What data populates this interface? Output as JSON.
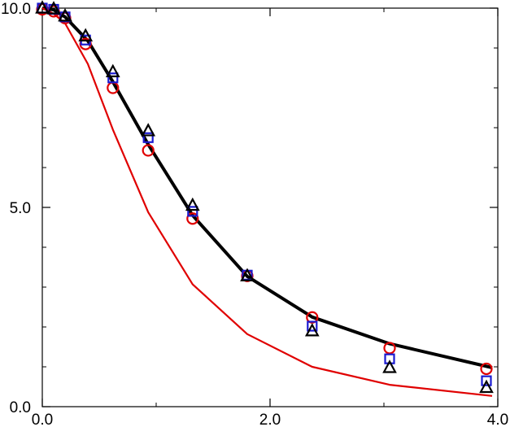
{
  "chart_data": {
    "type": "scatter",
    "title": "",
    "xlabel": "",
    "ylabel": "",
    "xlim": [
      0,
      4
    ],
    "ylim": [
      0,
      10
    ],
    "x_ticks": [
      {
        "value": 0,
        "label": "0.0"
      },
      {
        "value": 2,
        "label": "2.0"
      },
      {
        "value": 4,
        "label": "4.0"
      }
    ],
    "y_ticks": [
      {
        "value": 0,
        "label": "0.0"
      },
      {
        "value": 5,
        "label": "5.0"
      },
      {
        "value": 10,
        "label": "10.0"
      }
    ],
    "x_minor_step": 1,
    "y_minor_step": 1,
    "grid": false,
    "colors": {
      "black": "#000000",
      "red": "#e00000",
      "blue": "#1a1ad0"
    },
    "series": [
      {
        "kind": "line",
        "color": "#000000",
        "x": [
          0,
          0.1,
          0.2,
          0.4,
          0.62,
          0.93,
          1.32,
          1.8,
          2.37,
          3.05,
          3.95
        ],
        "y": [
          10.0,
          9.96,
          9.78,
          9.18,
          8.15,
          6.58,
          4.8,
          3.27,
          2.25,
          1.58,
          0.98
        ]
      },
      {
        "kind": "line",
        "color": "#e00000",
        "x": [
          0,
          0.1,
          0.2,
          0.4,
          0.62,
          0.93,
          1.32,
          1.8,
          2.37,
          3.05,
          3.95
        ],
        "y": [
          10.0,
          9.86,
          9.62,
          8.6,
          6.95,
          4.88,
          3.07,
          1.82,
          1.0,
          0.55,
          0.27
        ]
      },
      {
        "kind": "marker",
        "marker": "circle",
        "color": "#e00000",
        "x": [
          0.0,
          0.1,
          0.2,
          0.38,
          0.62,
          0.93,
          1.32,
          1.8,
          2.37,
          3.05,
          3.9
        ],
        "y": [
          9.97,
          9.92,
          9.75,
          9.1,
          8.0,
          6.43,
          4.72,
          3.28,
          2.24,
          1.47,
          0.95
        ]
      },
      {
        "kind": "marker",
        "marker": "square",
        "color": "#1a1ad0",
        "x": [
          0.0,
          0.1,
          0.2,
          0.38,
          0.62,
          0.93,
          1.32,
          1.8,
          2.37,
          3.05,
          3.9
        ],
        "y": [
          10.0,
          9.97,
          9.78,
          9.2,
          8.25,
          6.75,
          4.9,
          3.3,
          2.02,
          1.2,
          0.65
        ]
      },
      {
        "kind": "marker",
        "marker": "triangle",
        "color": "#000000",
        "x": [
          0.0,
          0.1,
          0.2,
          0.38,
          0.62,
          0.93,
          1.32,
          1.8,
          2.37,
          3.05,
          3.9
        ],
        "y": [
          10.0,
          9.98,
          9.8,
          9.3,
          8.4,
          6.92,
          5.05,
          3.28,
          1.9,
          0.98,
          0.48
        ]
      }
    ]
  }
}
